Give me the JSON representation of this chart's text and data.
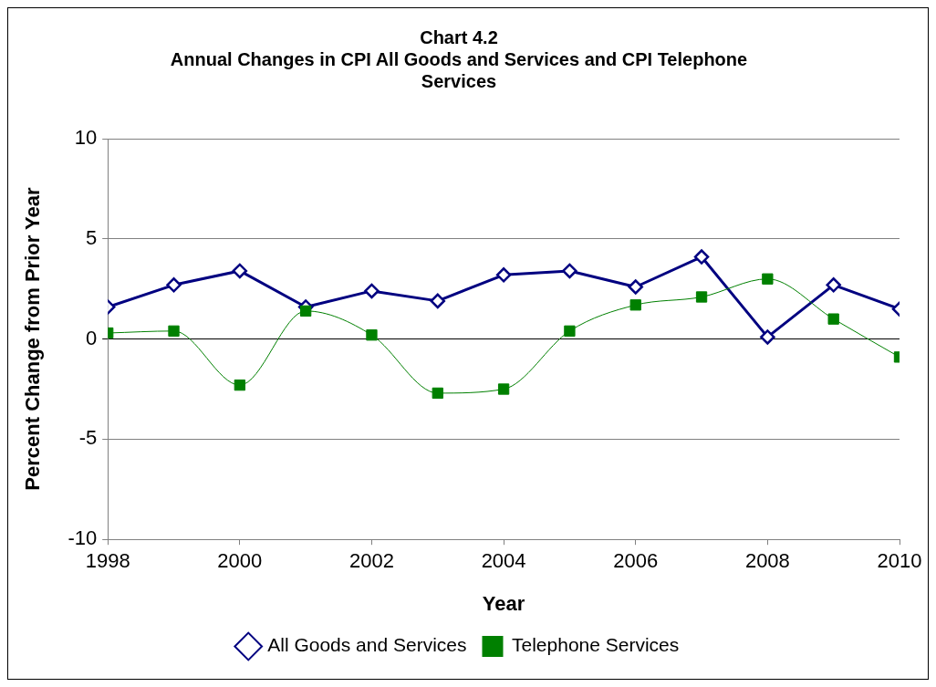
{
  "chart_data": {
    "type": "line",
    "title": "Chart 4.2",
    "subtitle": "Annual Changes in CPI All Goods and Services and CPI Telephone Services",
    "xlabel": "Year",
    "ylabel": "Percent Change from Prior Year",
    "x": [
      1998,
      1999,
      2000,
      2001,
      2002,
      2003,
      2004,
      2005,
      2006,
      2007,
      2008,
      2009,
      2010
    ],
    "series": [
      {
        "name": "All Goods and Services",
        "color": "#000080",
        "marker": "diamond",
        "values": [
          1.6,
          2.7,
          3.4,
          1.6,
          2.4,
          1.9,
          3.2,
          3.4,
          2.6,
          4.1,
          0.1,
          2.7,
          1.5
        ]
      },
      {
        "name": "Telephone Services",
        "color": "#008000",
        "marker": "square",
        "values": [
          0.3,
          0.4,
          -2.3,
          1.4,
          0.2,
          -2.7,
          -2.5,
          0.4,
          1.7,
          2.1,
          3.0,
          1.0,
          -0.9
        ]
      }
    ],
    "xlim": [
      1998,
      2010
    ],
    "xticks": [
      1998,
      2000,
      2002,
      2004,
      2006,
      2008,
      2010
    ],
    "ylim": [
      -10,
      10
    ],
    "yticks": [
      -10,
      -5,
      0,
      5,
      10
    ],
    "grid": "y",
    "legend": "bottom"
  }
}
